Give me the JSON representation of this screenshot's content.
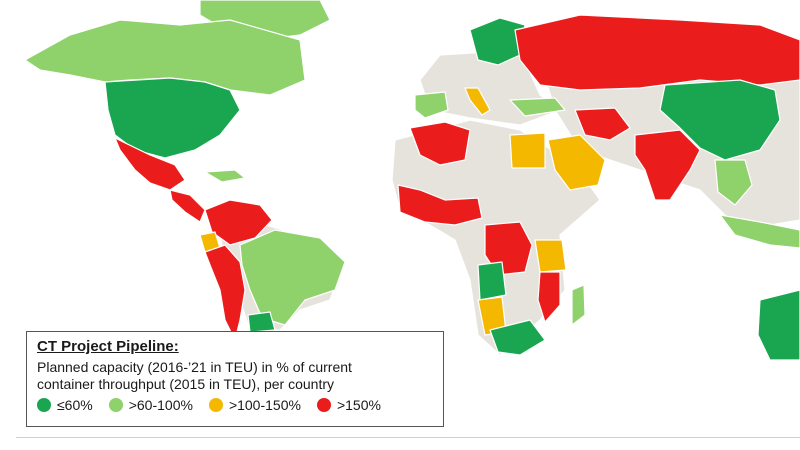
{
  "legend": {
    "title": "CT Project Pipeline:",
    "line1": "Planned capacity (2016-’21 in TEU) in % of current",
    "line2": "container throughput (2015 in TEU), per country",
    "items": [
      {
        "label": "≤60%",
        "color": "#1aa650"
      },
      {
        "label": ">60-100%",
        "color": "#8fd16a"
      },
      {
        "label": ">100-150%",
        "color": "#f5b800"
      },
      {
        "label": ">150%",
        "color": "#ea1c1c"
      }
    ]
  },
  "map": {
    "no_data_color": "#e6e3dc",
    "countries": [
      {
        "region": "greenland",
        "category": ">60-100%"
      },
      {
        "region": "canada",
        "category": ">60-100%"
      },
      {
        "region": "usa",
        "category": "≤60%"
      },
      {
        "region": "mexico",
        "category": ">150%"
      },
      {
        "region": "cuba",
        "category": ">60-100%"
      },
      {
        "region": "central-america",
        "category": ">150%"
      },
      {
        "region": "colombia-venezuela",
        "category": ">150%"
      },
      {
        "region": "ecuador",
        "category": ">100-150%"
      },
      {
        "region": "peru-chile",
        "category": ">150%"
      },
      {
        "region": "brazil",
        "category": ">60-100%"
      },
      {
        "region": "uruguay",
        "category": "≤60%"
      },
      {
        "region": "scandinavia",
        "category": "≤60%"
      },
      {
        "region": "iberia",
        "category": ">60-100%"
      },
      {
        "region": "italy",
        "category": ">100-150%"
      },
      {
        "region": "turkey",
        "category": ">60-100%"
      },
      {
        "region": "russia",
        "category": ">150%"
      },
      {
        "region": "north-africa-west",
        "category": ">150%"
      },
      {
        "region": "egypt",
        "category": ">100-150%"
      },
      {
        "region": "saudi-arabia",
        "category": ">100-150%"
      },
      {
        "region": "iran",
        "category": ">150%"
      },
      {
        "region": "india",
        "category": ">150%"
      },
      {
        "region": "china",
        "category": "≤60%"
      },
      {
        "region": "southeast-asia",
        "category": ">60-100%"
      },
      {
        "region": "west-africa",
        "category": ">150%"
      },
      {
        "region": "dr-congo",
        "category": ">150%"
      },
      {
        "region": "angola",
        "category": "≤60%"
      },
      {
        "region": "tanzania",
        "category": ">100-150%"
      },
      {
        "region": "namibia",
        "category": ">100-150%"
      },
      {
        "region": "south-africa",
        "category": "≤60%"
      },
      {
        "region": "mozambique",
        "category": ">150%"
      },
      {
        "region": "madagascar",
        "category": ">60-100%"
      },
      {
        "region": "australia",
        "category": "≤60%"
      },
      {
        "region": "indonesia",
        "category": ">60-100%"
      }
    ]
  }
}
